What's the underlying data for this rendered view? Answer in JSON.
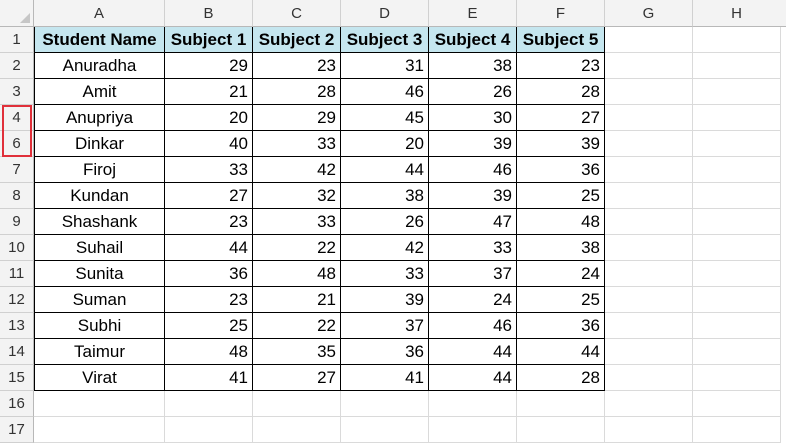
{
  "columns": [
    "A",
    "B",
    "C",
    "D",
    "E",
    "F",
    "G",
    "H"
  ],
  "row_numbers": [
    "1",
    "2",
    "3",
    "4",
    "6",
    "7",
    "8",
    "9",
    "10",
    "11",
    "12",
    "13",
    "14",
    "15",
    "16",
    "17"
  ],
  "headers": [
    "Student Name",
    "Subject 1",
    "Subject 2",
    "Subject 3",
    "Subject 4",
    "Subject 5"
  ],
  "rows": [
    [
      "Anuradha",
      "29",
      "23",
      "31",
      "38",
      "23"
    ],
    [
      "Amit",
      "21",
      "28",
      "46",
      "26",
      "28"
    ],
    [
      "Anupriya",
      "20",
      "29",
      "45",
      "30",
      "27"
    ],
    [
      "Dinkar",
      "40",
      "33",
      "20",
      "39",
      "39"
    ],
    [
      "Firoj",
      "33",
      "42",
      "44",
      "46",
      "36"
    ],
    [
      "Kundan",
      "27",
      "32",
      "38",
      "39",
      "25"
    ],
    [
      "Shashank",
      "23",
      "33",
      "26",
      "47",
      "48"
    ],
    [
      "Suhail",
      "44",
      "22",
      "42",
      "33",
      "38"
    ],
    [
      "Sunita",
      "36",
      "48",
      "33",
      "37",
      "24"
    ],
    [
      "Suman",
      "23",
      "21",
      "39",
      "24",
      "25"
    ],
    [
      "Subhi",
      "25",
      "22",
      "37",
      "46",
      "36"
    ],
    [
      "Taimur",
      "48",
      "35",
      "36",
      "44",
      "44"
    ],
    [
      "Virat",
      "41",
      "27",
      "41",
      "44",
      "28"
    ]
  ],
  "colors": {
    "header_fill": "#c5e6ef",
    "highlight_border": "#e0303a"
  }
}
